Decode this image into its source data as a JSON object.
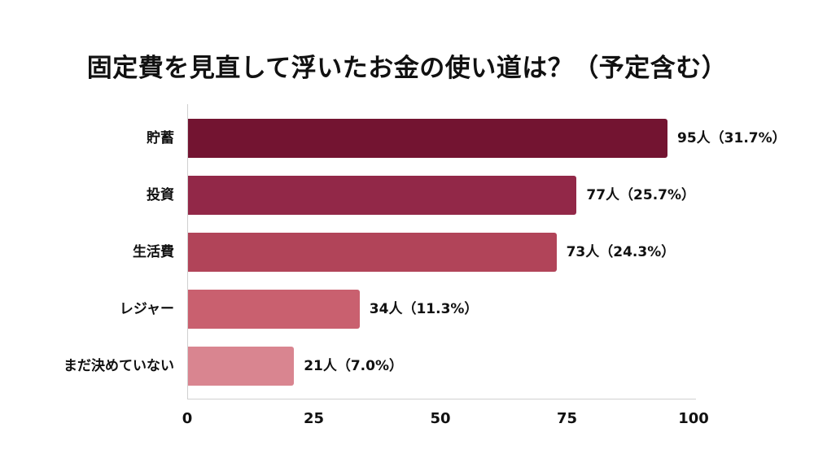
{
  "chart_data": {
    "type": "bar",
    "orientation": "horizontal",
    "title": "固定費を見直して浮いたお金の使い道は？（予定含む）",
    "xlabel": "",
    "ylabel": "",
    "xlim": [
      0,
      100
    ],
    "x_ticks": [
      "0",
      "25",
      "50",
      "75",
      "100"
    ],
    "grid": false,
    "legend": null,
    "categories": [
      "貯蓄",
      "投資",
      "生活費",
      "レジャー",
      "まだ決めていない"
    ],
    "values": [
      95,
      77,
      73,
      34,
      21
    ],
    "percentages": [
      31.7,
      25.7,
      24.3,
      11.3,
      7.0
    ],
    "data_labels": [
      "95人（31.7%）",
      "77人（25.7%）",
      "73人（24.3%）",
      "34人（11.3%）",
      "21人（7.0%）"
    ],
    "colors": [
      "#731431",
      "#922848",
      "#b14459",
      "#c9606f",
      "#d98590"
    ]
  },
  "chart": {
    "title": "固定費を見直して浮いたお金の使い道は？（予定含む）",
    "bars": [
      {
        "label": "貯蓄",
        "value_label": "95人（31.7%）"
      },
      {
        "label": "投資",
        "value_label": "77人（25.7%）"
      },
      {
        "label": "生活費",
        "value_label": "73人（24.3%）"
      },
      {
        "label": "レジャー",
        "value_label": "34人（11.3%）"
      },
      {
        "label": "まだ決めていない",
        "value_label": "21人（7.0%）"
      }
    ],
    "ticks": [
      "0",
      "25",
      "50",
      "75",
      "100"
    ]
  }
}
